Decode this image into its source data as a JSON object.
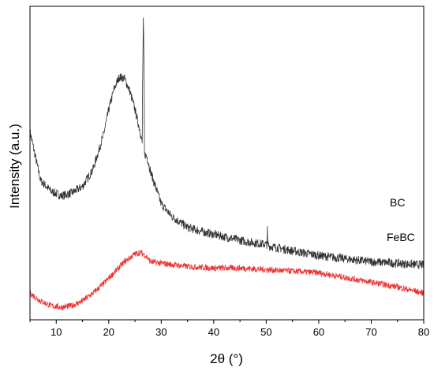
{
  "chart_data": {
    "type": "line",
    "title": "",
    "xlabel": "2θ (°)",
    "ylabel": "Intensity (a.u.)",
    "xlim": [
      5,
      80
    ],
    "xticks": [
      10,
      20,
      30,
      40,
      50,
      60,
      70,
      80
    ],
    "y_tick_labels": false,
    "grid": false,
    "series": [
      {
        "name": "BC",
        "color": "#333333",
        "x": [
          5,
          7,
          9,
          11,
          13,
          15,
          17,
          19,
          20,
          21,
          22,
          23,
          24,
          25,
          26,
          26.7,
          27.3,
          28,
          29,
          30,
          32,
          35,
          38,
          42,
          46,
          50,
          50.3,
          50.6,
          55,
          60,
          65,
          70,
          75,
          80
        ],
        "y": [
          0.6,
          0.445,
          0.41,
          0.395,
          0.405,
          0.425,
          0.48,
          0.59,
          0.67,
          0.735,
          0.775,
          0.77,
          0.73,
          0.67,
          0.6,
          0.53,
          0.52,
          0.47,
          0.42,
          0.37,
          0.33,
          0.295,
          0.28,
          0.265,
          0.25,
          0.24,
          0.24,
          0.235,
          0.22,
          0.205,
          0.195,
          0.185,
          0.18,
          0.175
        ],
        "spikes": [
          {
            "x": 26.6,
            "y": 0.98
          },
          {
            "x": 50.2,
            "y": 0.32
          }
        ],
        "label_text": "BC"
      },
      {
        "name": "FeBC",
        "color": "#ee3333",
        "x": [
          5,
          7,
          9,
          11,
          13,
          15,
          17,
          19,
          21,
          23,
          25,
          26,
          27,
          28,
          30,
          35,
          40,
          45,
          50,
          55,
          60,
          65,
          70,
          75,
          80
        ],
        "y": [
          0.085,
          0.06,
          0.045,
          0.04,
          0.045,
          0.06,
          0.085,
          0.115,
          0.15,
          0.185,
          0.21,
          0.215,
          0.205,
          0.185,
          0.18,
          0.17,
          0.165,
          0.165,
          0.16,
          0.155,
          0.15,
          0.135,
          0.12,
          0.105,
          0.085
        ],
        "label_text": "FeBC"
      }
    ]
  }
}
